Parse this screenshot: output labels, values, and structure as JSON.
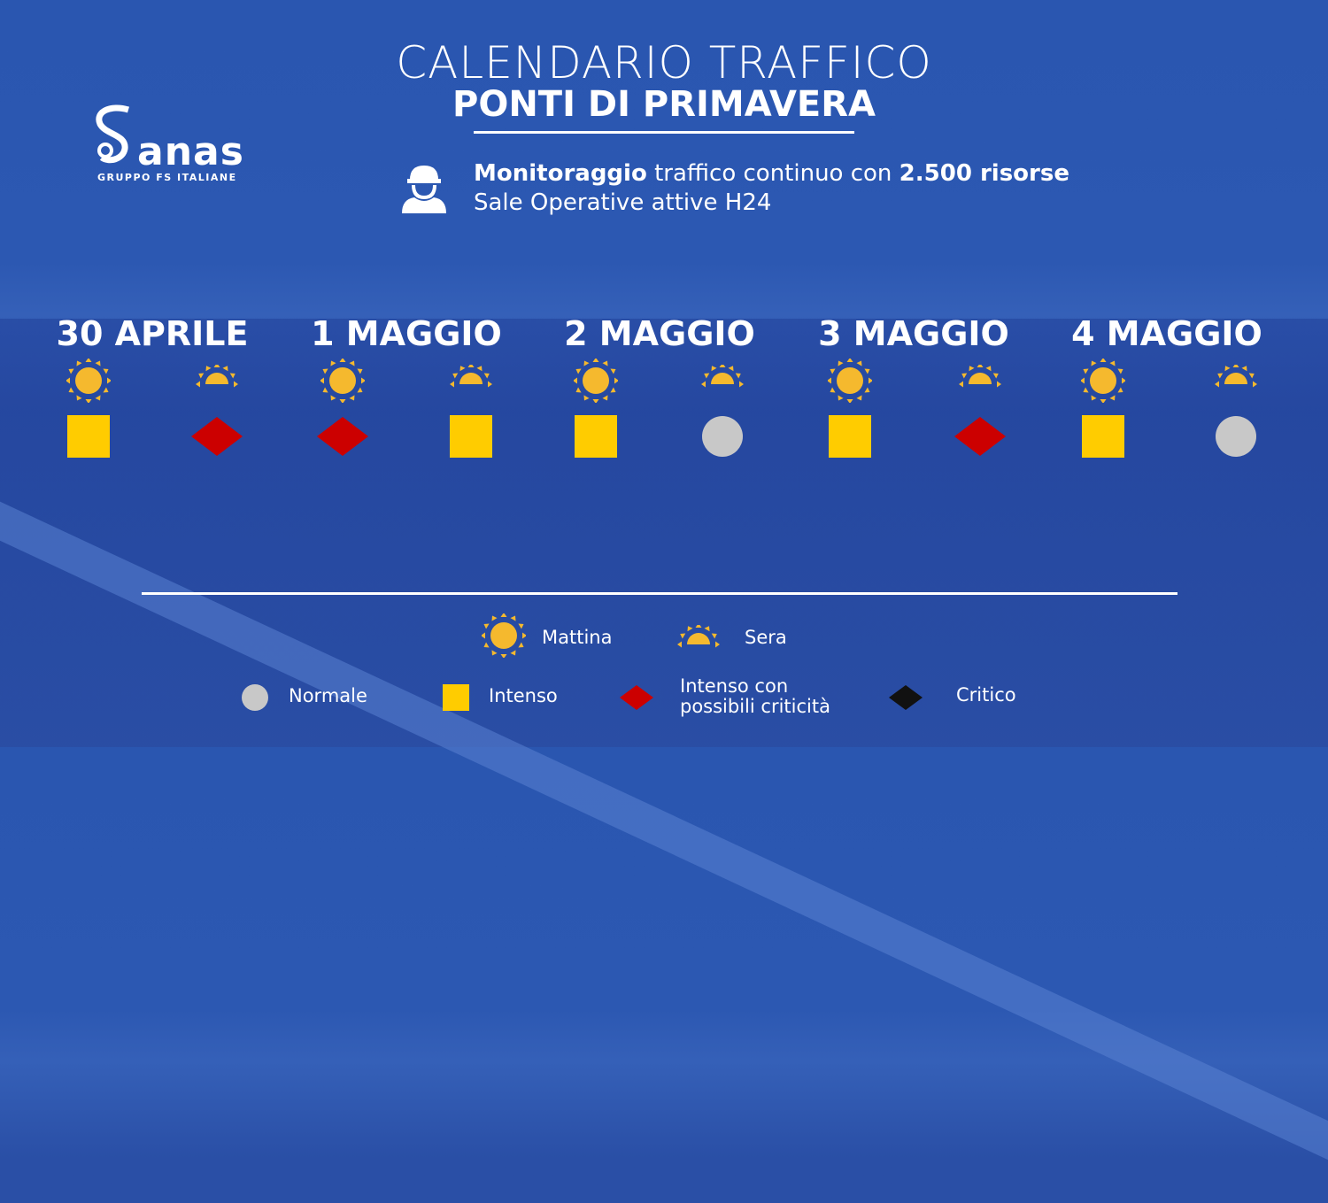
{
  "header": {
    "title": "CALENDARIO TRAFFICO",
    "subtitle": "PONTI DI PRIMAVERA"
  },
  "logo": {
    "brand": "anas",
    "group": "GRUPPO FS ITALIANE"
  },
  "info": {
    "icon": "worker-helmet-icon",
    "line1_bold": "Monitoraggio",
    "line1_rest": " traffico continuo con ",
    "line1_bold2": "2.500 risorse",
    "line2": "Sale Operative attive H24"
  },
  "colors": {
    "background": "#2b55ae",
    "sun": "#f5b92e",
    "intenso": "#ffcc00",
    "intenso_criticita": "#cc0000",
    "normale": "#c8c8c8",
    "critico": "#111111"
  },
  "days": [
    {
      "label": "30 APRILE",
      "mattina": "intenso",
      "sera": "intenso_criticita"
    },
    {
      "label": "1 MAGGIO",
      "mattina": "intenso_criticita",
      "sera": "intenso"
    },
    {
      "label": "2 MAGGIO",
      "mattina": "intenso",
      "sera": "normale"
    },
    {
      "label": "3 MAGGIO",
      "mattina": "intenso",
      "sera": "intenso_criticita"
    },
    {
      "label": "4 MAGGIO",
      "mattina": "intenso",
      "sera": "normale"
    }
  ],
  "legend": {
    "mattina": "Mattina",
    "sera": "Sera",
    "normale": "Normale",
    "intenso": "Intenso",
    "intenso_criticita_1": "Intenso con",
    "intenso_criticita_2": "possibili criticità",
    "critico": "Critico"
  }
}
